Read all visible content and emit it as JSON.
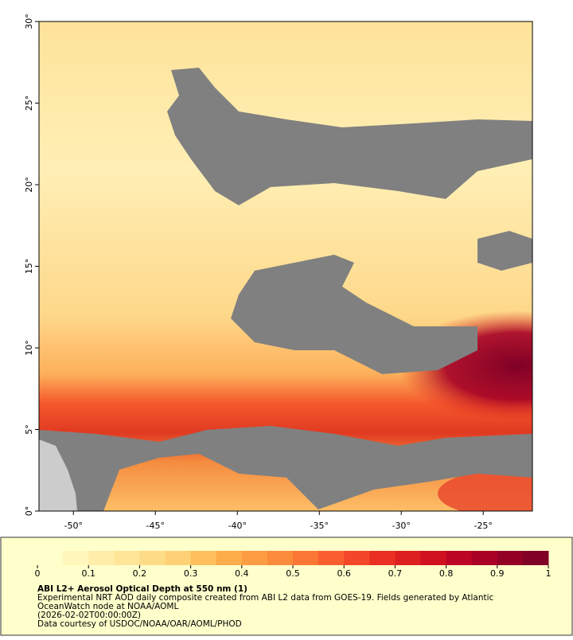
{
  "map": {
    "xlim": [
      -52.1,
      -22
    ],
    "ylim": [
      0,
      30
    ],
    "xticks": [
      {
        "value": -50,
        "label": "-50°"
      },
      {
        "value": -45,
        "label": "-45°"
      },
      {
        "value": -40,
        "label": "-40°"
      },
      {
        "value": -35,
        "label": "-35°"
      },
      {
        "value": -30,
        "label": "-30°"
      },
      {
        "value": -25,
        "label": "-25°"
      }
    ],
    "yticks": [
      {
        "value": 0,
        "label": "0°"
      },
      {
        "value": 5,
        "label": "5°"
      },
      {
        "value": 10,
        "label": "10°"
      },
      {
        "value": 15,
        "label": "15°"
      },
      {
        "value": 20,
        "label": "20°"
      },
      {
        "value": 25,
        "label": "25°"
      },
      {
        "value": 30,
        "label": "30°"
      }
    ]
  },
  "colorbar": {
    "range": [
      0,
      1
    ],
    "ticks": [
      0,
      0.1,
      0.2,
      0.3,
      0.4,
      0.5,
      0.6,
      0.7,
      0.8,
      0.9,
      1
    ],
    "colors": [
      "#ffffcc",
      "#fff6bb",
      "#ffeda9",
      "#fee598",
      "#fedc87",
      "#fed176",
      "#febf5c",
      "#fdad49",
      "#fd9d43",
      "#fc8b3b",
      "#fc7634",
      "#fb5e2e",
      "#f44628",
      "#ea3022",
      "#de1f20",
      "#cf1120",
      "#bd0626",
      "#a90026",
      "#920026",
      "#800026"
    ]
  },
  "caption": {
    "title": "ABI L2+ Aerosol Optical Depth at 550 nm (1)",
    "lines": [
      "Experimental NRT AOD daily composite created from ABI L2 data from GOES-19. Fields generated by Atlantic",
      "OceanWatch node at NOAA/AOML",
      "(2026-02-02T00:00:00Z)",
      "Data courtesy of USDOC/NOAA/OAR/AOML/PHOD"
    ]
  }
}
